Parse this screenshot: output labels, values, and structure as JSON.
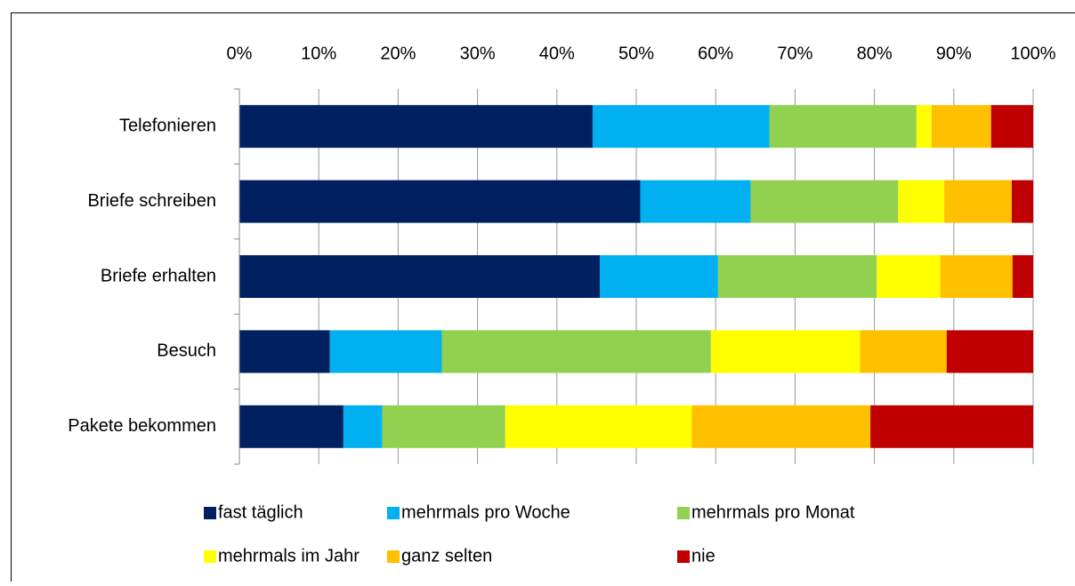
{
  "chart_data": {
    "type": "bar",
    "orientation": "horizontal",
    "stacked": true,
    "categories": [
      "Telefonieren",
      "Briefe schreiben",
      "Briefe erhalten",
      "Besuch",
      "Pakete bekommen"
    ],
    "series": [
      {
        "name": "fast täglich",
        "color": "#002060",
        "values": [
          44.5,
          50.5,
          45.4,
          11.4,
          13.1
        ]
      },
      {
        "name": "mehrmals pro Woche",
        "color": "#00b0f0",
        "values": [
          22.3,
          13.9,
          14.9,
          14.1,
          4.9
        ]
      },
      {
        "name": "mehrmals pro Monat",
        "color": "#92d050",
        "values": [
          18.5,
          18.6,
          20.0,
          33.9,
          15.5
        ]
      },
      {
        "name": "mehrmals im Jahr",
        "color": "#ffff00",
        "values": [
          1.9,
          5.8,
          8.0,
          18.8,
          23.5
        ]
      },
      {
        "name": "ganz selten",
        "color": "#ffc000",
        "values": [
          7.5,
          8.5,
          9.1,
          10.9,
          22.5
        ]
      },
      {
        "name": "nie",
        "color": "#c00000",
        "values": [
          5.3,
          2.7,
          2.6,
          10.9,
          20.5
        ]
      }
    ],
    "xlim": [
      0,
      100
    ],
    "xticks": [
      {
        "value": 0,
        "label": "0%"
      },
      {
        "value": 10,
        "label": "10%"
      },
      {
        "value": 20,
        "label": "20%"
      },
      {
        "value": 30,
        "label": "30%"
      },
      {
        "value": 40,
        "label": "40%"
      },
      {
        "value": 50,
        "label": "50%"
      },
      {
        "value": 60,
        "label": "60%"
      },
      {
        "value": 70,
        "label": "70%"
      },
      {
        "value": 80,
        "label": "80%"
      },
      {
        "value": 90,
        "label": "90%"
      },
      {
        "value": 100,
        "label": "100%"
      }
    ],
    "grid": true,
    "legend": "bottom"
  }
}
